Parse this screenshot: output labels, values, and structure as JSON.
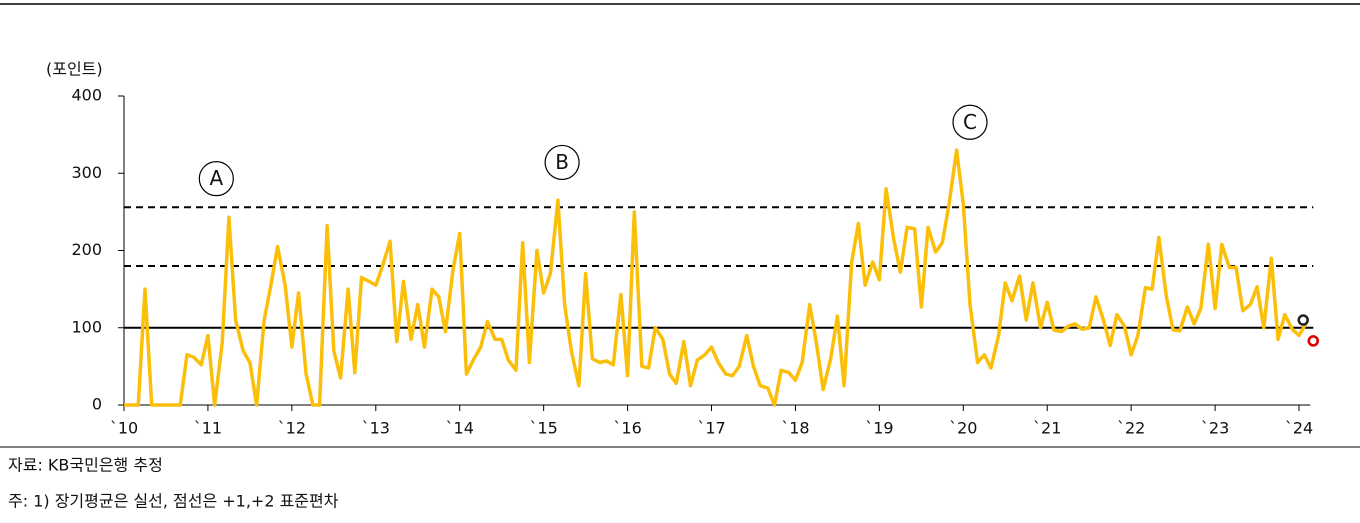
{
  "chart_data": {
    "type": "line",
    "y_label": "(포인트)",
    "source": "자료: KB국민은행 추정",
    "note": "주: 1) 장기평균은 실선, 점선은 +1,+2 표준편차",
    "xlim": [
      2010,
      2024.17
    ],
    "xticks": [
      {
        "value": 2010,
        "label": "`10"
      },
      {
        "value": 2011,
        "label": "`11"
      },
      {
        "value": 2012,
        "label": "`12"
      },
      {
        "value": 2013,
        "label": "`13"
      },
      {
        "value": 2014,
        "label": "`14"
      },
      {
        "value": 2015,
        "label": "`15"
      },
      {
        "value": 2016,
        "label": "`16"
      },
      {
        "value": 2017,
        "label": "`17"
      },
      {
        "value": 2018,
        "label": "`18"
      },
      {
        "value": 2019,
        "label": "`19"
      },
      {
        "value": 2020,
        "label": "`20"
      },
      {
        "value": 2021,
        "label": "`21"
      },
      {
        "value": 2022,
        "label": "`22"
      },
      {
        "value": 2023,
        "label": "`23"
      },
      {
        "value": 2024,
        "label": "`24"
      }
    ],
    "ylim": [
      0,
      400
    ],
    "yticks": [
      0,
      100,
      200,
      300,
      400
    ],
    "x": [
      2010,
      2010.08,
      2010.17,
      2010.25,
      2010.33,
      2010.42,
      2010.5,
      2010.58,
      2010.67,
      2010.75,
      2010.83,
      2010.92,
      2011,
      2011.08,
      2011.17,
      2011.25,
      2011.33,
      2011.42,
      2011.5,
      2011.58,
      2011.67,
      2011.75,
      2011.83,
      2011.92,
      2012,
      2012.08,
      2012.17,
      2012.25,
      2012.33,
      2012.42,
      2012.5,
      2012.58,
      2012.67,
      2012.75,
      2012.83,
      2012.92,
      2013,
      2013.08,
      2013.17,
      2013.25,
      2013.33,
      2013.42,
      2013.5,
      2013.58,
      2013.67,
      2013.75,
      2013.83,
      2013.92,
      2014,
      2014.08,
      2014.17,
      2014.25,
      2014.33,
      2014.42,
      2014.5,
      2014.58,
      2014.67,
      2014.75,
      2014.83,
      2014.92,
      2015,
      2015.08,
      2015.17,
      2015.25,
      2015.33,
      2015.42,
      2015.5,
      2015.58,
      2015.67,
      2015.75,
      2015.83,
      2015.92,
      2016,
      2016.08,
      2016.17,
      2016.25,
      2016.33,
      2016.42,
      2016.5,
      2016.58,
      2016.67,
      2016.75,
      2016.83,
      2016.92,
      2017,
      2017.08,
      2017.17,
      2017.25,
      2017.33,
      2017.42,
      2017.5,
      2017.58,
      2017.67,
      2017.75,
      2017.83,
      2017.92,
      2018,
      2018.08,
      2018.17,
      2018.25,
      2018.33,
      2018.42,
      2018.5,
      2018.58,
      2018.67,
      2018.75,
      2018.83,
      2018.92,
      2019,
      2019.08,
      2019.17,
      2019.25,
      2019.33,
      2019.42,
      2019.5,
      2019.58,
      2019.67,
      2019.75,
      2019.83,
      2019.92,
      2020,
      2020.08,
      2020.17,
      2020.25,
      2020.33,
      2020.42,
      2020.5,
      2020.58,
      2020.67,
      2020.75,
      2020.83,
      2020.92,
      2021,
      2021.08,
      2021.17,
      2021.25,
      2021.33,
      2021.42,
      2021.5,
      2021.58,
      2021.67,
      2021.75,
      2021.83,
      2021.92,
      2022,
      2022.08,
      2022.17,
      2022.25,
      2022.33,
      2022.42,
      2022.5,
      2022.58,
      2022.67,
      2022.75,
      2022.83,
      2022.92,
      2023,
      2023.08,
      2023.17,
      2023.25,
      2023.33,
      2023.42,
      2023.5,
      2023.58,
      2023.67,
      2023.75,
      2023.83,
      2023.92,
      2024,
      2024.08
    ],
    "series": [
      {
        "color": "#fbbf0a",
        "values": [
          0,
          0,
          0,
          150,
          0,
          0,
          0,
          0,
          0,
          65,
          62,
          52,
          90,
          0,
          80,
          243,
          110,
          70,
          55,
          0,
          110,
          155,
          205,
          155,
          75,
          145,
          40,
          0,
          0,
          232,
          70,
          35,
          150,
          42,
          165,
          160,
          155,
          180,
          212,
          82,
          160,
          85,
          130,
          75,
          150,
          140,
          95,
          175,
          222,
          40,
          60,
          75,
          108,
          85,
          85,
          58,
          45,
          210,
          55,
          200,
          145,
          170,
          265,
          130,
          70,
          25,
          170,
          60,
          55,
          57,
          52,
          143,
          38,
          250,
          50,
          48,
          100,
          85,
          40,
          28,
          82,
          25,
          58,
          65,
          75,
          55,
          40,
          38,
          50,
          90,
          50,
          25,
          22,
          0,
          45,
          42,
          32,
          55,
          130,
          80,
          20,
          60,
          115,
          25,
          185,
          235,
          155,
          185,
          162,
          280,
          215,
          172,
          230,
          228,
          127,
          230,
          198,
          210,
          260,
          330,
          260,
          130,
          55,
          65,
          48,
          90,
          158,
          135,
          167,
          110,
          158,
          100,
          133,
          97,
          95,
          102,
          105,
          98,
          100,
          140,
          110,
          77,
          117,
          102,
          65,
          90,
          152,
          150,
          217,
          140,
          97,
          96,
          127,
          105,
          125,
          208,
          125,
          208,
          178,
          178,
          122,
          130,
          153,
          100,
          190,
          85,
          117,
          98,
          90,
          105
        ]
      }
    ],
    "points": [
      {
        "x": 2024.05,
        "value": 110,
        "color": "#222222"
      },
      {
        "x": 2024.17,
        "value": 83,
        "color": "#e00000"
      }
    ],
    "hlines": [
      {
        "value": 100,
        "style": "solid"
      },
      {
        "value": 180,
        "style": "dashed"
      },
      {
        "value": 256,
        "style": "dashed"
      }
    ],
    "annotations": [
      {
        "text": "A",
        "x": 2011.1,
        "y": 293
      },
      {
        "text": "B",
        "x": 2015.22,
        "y": 314
      },
      {
        "text": "C",
        "x": 2020.08,
        "y": 366
      }
    ]
  }
}
